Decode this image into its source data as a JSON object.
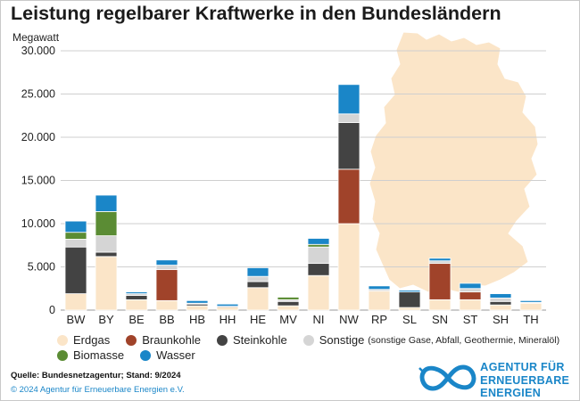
{
  "title": "Leistung regelbarer Kraftwerke in den Bundesländern",
  "unit_label": "Megawatt",
  "colors": {
    "Erdgas": "#fbe5c8",
    "Braunkohle": "#a0432a",
    "Steinkohle": "#434343",
    "Sonstige": "#d5d5d5",
    "Biomasse": "#5b8c34",
    "Wasser": "#1a86c8",
    "map": "#fbe5c8",
    "grid": "#cfcfcf",
    "brand": "#1a86c8"
  },
  "chart_data": {
    "type": "bar",
    "stacked": true,
    "title": "Leistung regelbarer Kraftwerke in den Bundesländern",
    "ylabel": "Megawatt",
    "xlabel": "",
    "ylim": [
      0,
      30000
    ],
    "yticks": [
      0,
      5000,
      10000,
      15000,
      20000,
      25000,
      30000
    ],
    "ytick_labels": [
      "0",
      "5.000",
      "10.000",
      "15.000",
      "20.000",
      "25.000",
      "30.000"
    ],
    "categories": [
      "BW",
      "BY",
      "BE",
      "BB",
      "HB",
      "HH",
      "HE",
      "MV",
      "NI",
      "NW",
      "RP",
      "SL",
      "SN",
      "ST",
      "SH",
      "TH"
    ],
    "series": [
      {
        "name": "Erdgas",
        "values": [
          1900,
          6200,
          1200,
          1100,
          500,
          350,
          2600,
          500,
          4000,
          10000,
          2200,
          300,
          1200,
          1200,
          600,
          800
        ]
      },
      {
        "name": "Braunkohle",
        "values": [
          0,
          0,
          0,
          3600,
          0,
          0,
          0,
          0,
          0,
          6300,
          0,
          0,
          4200,
          900,
          0,
          0
        ]
      },
      {
        "name": "Steinkohle",
        "values": [
          5400,
          500,
          500,
          0,
          200,
          100,
          700,
          500,
          1400,
          5400,
          0,
          1800,
          0,
          0,
          400,
          0
        ]
      },
      {
        "name": "Sonstige",
        "values": [
          900,
          1900,
          200,
          500,
          100,
          0,
          600,
          200,
          1900,
          1000,
          200,
          0,
          300,
          400,
          400,
          100
        ]
      },
      {
        "name": "Biomasse",
        "values": [
          800,
          2800,
          0,
          0,
          0,
          0,
          0,
          300,
          300,
          0,
          0,
          0,
          0,
          0,
          0,
          0
        ]
      },
      {
        "name": "Wasser",
        "values": [
          1300,
          1900,
          200,
          600,
          300,
          250,
          1000,
          0,
          700,
          3400,
          400,
          200,
          300,
          600,
          500,
          200
        ]
      }
    ]
  },
  "legend": {
    "items": [
      {
        "label": "Erdgas",
        "color": "#fbe5c8"
      },
      {
        "label": "Braunkohle",
        "color": "#a0432a"
      },
      {
        "label": "Steinkohle",
        "color": "#434343"
      },
      {
        "label": "Sonstige",
        "color": "#d5d5d5",
        "note": "(sonstige Gase, Abfall, Geothermie, Mineralöl)"
      },
      {
        "label": "Biomasse",
        "color": "#5b8c34"
      },
      {
        "label": "Wasser",
        "color": "#1a86c8"
      }
    ]
  },
  "footer": {
    "source": "Quelle: Bundesnetzagentur; Stand: 9/2024",
    "copyright": "© 2024 Agentur für Erneuerbare Energien e.V."
  },
  "logo": {
    "line1_cap": "A",
    "line1_rest": "GENTUR FÜR",
    "line2_cap": "E",
    "line2_rest": "RNEUERBARE",
    "line3_cap": "E",
    "line3_rest": "NERGIEN"
  }
}
